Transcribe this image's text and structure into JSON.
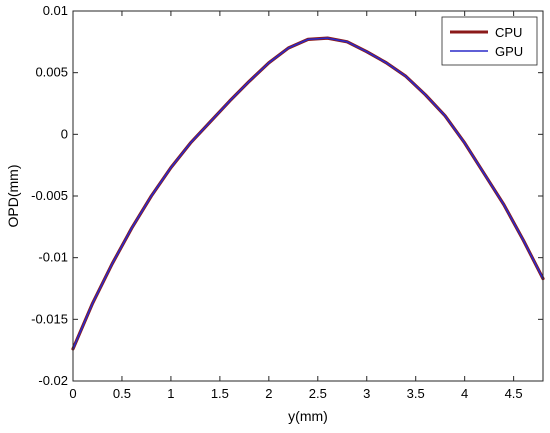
{
  "chart_data": {
    "type": "line",
    "xlabel": "y(mm)",
    "ylabel": "OPD(mm)",
    "xlim": [
      0,
      4.8
    ],
    "ylim": [
      -0.02,
      0.01
    ],
    "xticks": [
      0,
      0.5,
      1,
      1.5,
      2,
      2.5,
      3,
      3.5,
      4,
      4.5
    ],
    "xtick_labels": [
      "0",
      "0.5",
      "1",
      "1.5",
      "2",
      "2.5",
      "3",
      "3.5",
      "4",
      "4.5"
    ],
    "yticks": [
      0.01,
      0.005,
      0,
      -0.005,
      -0.01,
      -0.015,
      -0.02
    ],
    "ytick_labels": [
      "0.01",
      "0.005",
      "0",
      "-0.005",
      "-0.01",
      "-0.015",
      "-0.02"
    ],
    "grid": false,
    "legend": {
      "placement": "top-right"
    },
    "series": [
      {
        "name": "CPU",
        "color": "#8b1a1a",
        "x": [
          0,
          0.2,
          0.4,
          0.6,
          0.8,
          1.0,
          1.2,
          1.4,
          1.6,
          1.8,
          2.0,
          2.2,
          2.4,
          2.6,
          2.8,
          3.0,
          3.2,
          3.4,
          3.6,
          3.8,
          4.0,
          4.2,
          4.4,
          4.6,
          4.8
        ],
        "y": [
          -0.0174,
          -0.0137,
          -0.0105,
          -0.0076,
          -0.005,
          -0.0027,
          -0.0007,
          0.001,
          0.0027,
          0.0043,
          0.0058,
          0.007,
          0.0077,
          0.0078,
          0.0075,
          0.0067,
          0.0058,
          0.0047,
          0.0032,
          0.0015,
          -0.0007,
          -0.0032,
          -0.0057,
          -0.0086,
          -0.0117
        ]
      },
      {
        "name": "GPU",
        "color": "#2a2ac8",
        "x": [
          0,
          0.2,
          0.4,
          0.6,
          0.8,
          1.0,
          1.2,
          1.4,
          1.6,
          1.8,
          2.0,
          2.2,
          2.4,
          2.6,
          2.8,
          3.0,
          3.2,
          3.4,
          3.6,
          3.8,
          4.0,
          4.2,
          4.4,
          4.6,
          4.8
        ],
        "y": [
          -0.0174,
          -0.0137,
          -0.0105,
          -0.0076,
          -0.005,
          -0.0027,
          -0.0007,
          0.001,
          0.0027,
          0.0043,
          0.0058,
          0.007,
          0.0077,
          0.0078,
          0.0075,
          0.0067,
          0.0058,
          0.0047,
          0.0032,
          0.0015,
          -0.0007,
          -0.0032,
          -0.0057,
          -0.0086,
          -0.0117
        ]
      }
    ]
  }
}
